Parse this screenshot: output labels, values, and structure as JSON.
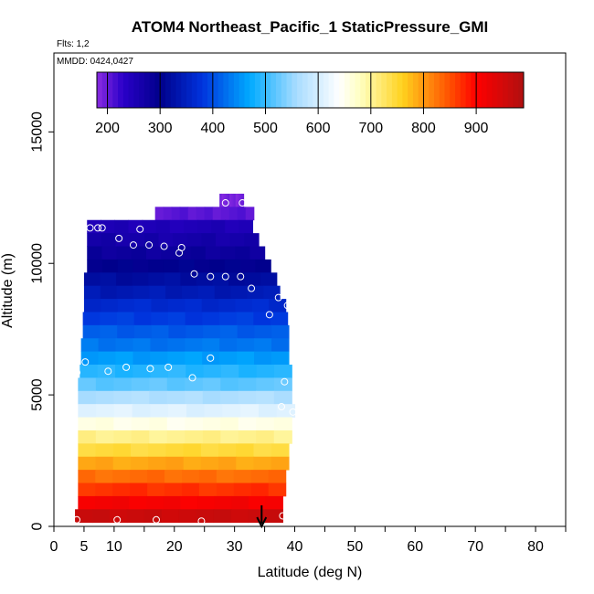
{
  "chart_data": {
    "type": "heatmap",
    "title": "ATOM4 Northeast_Pacific_1 StaticPressure_GMI",
    "flights_text": "Flts: 1,2",
    "mmdd_text": "MMDD: 0424,0427",
    "xlabel": "Latitude (deg N)",
    "ylabel": "Altitude (m)",
    "xlim": [
      0,
      85
    ],
    "ylim": [
      0,
      18000
    ],
    "x_ticks": [
      0,
      10,
      20,
      30,
      40,
      50,
      60,
      70,
      80
    ],
    "x_tick_labels": [
      "0",
      "5",
      "10",
      "20",
      "30",
      "40",
      "50",
      "60",
      "70",
      "80"
    ],
    "x_tick_label_values": [
      0,
      5,
      10,
      20,
      30,
      40,
      50,
      60,
      70,
      80
    ],
    "y_ticks": [
      0,
      5000,
      10000,
      15000
    ],
    "y_tick_labels": [
      "0",
      "5000",
      "10000",
      "15000"
    ],
    "colorbar": {
      "min": 180,
      "max": 990,
      "ticks": [
        200,
        300,
        400,
        500,
        600,
        700,
        800,
        900
      ],
      "tick_labels": [
        "200",
        "300",
        "400",
        "500",
        "600",
        "700",
        "800",
        "900"
      ]
    },
    "colormap": [
      {
        "v": 180,
        "c": "#8b2be2"
      },
      {
        "v": 230,
        "c": "#2a00c8"
      },
      {
        "v": 300,
        "c": "#00008b"
      },
      {
        "v": 380,
        "c": "#0033dd"
      },
      {
        "v": 470,
        "c": "#00aaff"
      },
      {
        "v": 560,
        "c": "#aaddff"
      },
      {
        "v": 640,
        "c": "#ffffff"
      },
      {
        "v": 680,
        "c": "#ffffc0"
      },
      {
        "v": 760,
        "c": "#ffd21e"
      },
      {
        "v": 850,
        "c": "#ff5000"
      },
      {
        "v": 900,
        "c": "#ff0000"
      },
      {
        "v": 990,
        "c": "#b01010"
      }
    ],
    "layers": [
      {
        "alt": 12400,
        "x0": 27.5,
        "x1": 31.5,
        "p": 190
      },
      {
        "alt": 11900,
        "x0": 16.8,
        "x1": 33.2,
        "p": 205
      },
      {
        "alt": 11400,
        "x0": 5.5,
        "x1": 33.0,
        "p": 250
      },
      {
        "alt": 10900,
        "x0": 5.5,
        "x1": 34.0,
        "p": 265
      },
      {
        "alt": 10400,
        "x0": 5.5,
        "x1": 35.0,
        "p": 280
      },
      {
        "alt": 9900,
        "x0": 5.5,
        "x1": 36.0,
        "p": 300
      },
      {
        "alt": 9400,
        "x0": 5.0,
        "x1": 37.0,
        "p": 320
      },
      {
        "alt": 8900,
        "x0": 5.0,
        "x1": 37.5,
        "p": 340
      },
      {
        "alt": 8400,
        "x0": 5.0,
        "x1": 38.5,
        "p": 365
      },
      {
        "alt": 7900,
        "x0": 4.8,
        "x1": 38.8,
        "p": 385
      },
      {
        "alt": 7400,
        "x0": 4.8,
        "x1": 39.0,
        "p": 410
      },
      {
        "alt": 6900,
        "x0": 4.5,
        "x1": 39.0,
        "p": 430
      },
      {
        "alt": 6400,
        "x0": 4.5,
        "x1": 39.0,
        "p": 460
      },
      {
        "alt": 5900,
        "x0": 4.3,
        "x1": 39.5,
        "p": 490
      },
      {
        "alt": 5400,
        "x0": 4.0,
        "x1": 39.5,
        "p": 520
      },
      {
        "alt": 4900,
        "x0": 4.0,
        "x1": 39.5,
        "p": 565
      },
      {
        "alt": 4400,
        "x0": 4.0,
        "x1": 40.0,
        "p": 610
      },
      {
        "alt": 3900,
        "x0": 4.0,
        "x1": 39.5,
        "p": 655
      },
      {
        "alt": 3400,
        "x0": 4.0,
        "x1": 39.5,
        "p": 705
      },
      {
        "alt": 2900,
        "x0": 4.0,
        "x1": 39.0,
        "p": 745
      },
      {
        "alt": 2400,
        "x0": 4.0,
        "x1": 39.0,
        "p": 790
      },
      {
        "alt": 1900,
        "x0": 4.0,
        "x1": 38.5,
        "p": 830
      },
      {
        "alt": 1400,
        "x0": 4.0,
        "x1": 38.5,
        "p": 870
      },
      {
        "alt": 900,
        "x0": 4.0,
        "x1": 38.0,
        "p": 910
      },
      {
        "alt": 400,
        "x0": 3.5,
        "x1": 38.0,
        "p": 960
      }
    ],
    "points": [
      {
        "lat": 28.5,
        "alt": 12300
      },
      {
        "lat": 31.3,
        "alt": 12300
      },
      {
        "lat": 6.0,
        "alt": 11350
      },
      {
        "lat": 7.3,
        "alt": 11350
      },
      {
        "lat": 8.0,
        "alt": 11350
      },
      {
        "lat": 14.3,
        "alt": 11300
      },
      {
        "lat": 10.8,
        "alt": 10950
      },
      {
        "lat": 13.2,
        "alt": 10700
      },
      {
        "lat": 15.8,
        "alt": 10700
      },
      {
        "lat": 18.3,
        "alt": 10650
      },
      {
        "lat": 21.2,
        "alt": 10600
      },
      {
        "lat": 20.8,
        "alt": 10400
      },
      {
        "lat": 23.3,
        "alt": 9600
      },
      {
        "lat": 26.0,
        "alt": 9500
      },
      {
        "lat": 28.5,
        "alt": 9500
      },
      {
        "lat": 31.0,
        "alt": 9500
      },
      {
        "lat": 32.8,
        "alt": 9050
      },
      {
        "lat": 37.3,
        "alt": 8700
      },
      {
        "lat": 38.8,
        "alt": 8400
      },
      {
        "lat": 35.8,
        "alt": 8050
      },
      {
        "lat": 26.0,
        "alt": 6400
      },
      {
        "lat": 5.2,
        "alt": 6250
      },
      {
        "lat": 3.8,
        "alt": 5850
      },
      {
        "lat": 9.0,
        "alt": 5900
      },
      {
        "lat": 12.0,
        "alt": 6050
      },
      {
        "lat": 16.0,
        "alt": 6000
      },
      {
        "lat": 19.0,
        "alt": 6050
      },
      {
        "lat": 23.0,
        "alt": 5650
      },
      {
        "lat": 38.3,
        "alt": 5500
      },
      {
        "lat": 37.8,
        "alt": 4550
      },
      {
        "lat": 39.7,
        "alt": 4350
      },
      {
        "lat": 3.8,
        "alt": 250
      },
      {
        "lat": 10.5,
        "alt": 250
      },
      {
        "lat": 17.0,
        "alt": 250
      },
      {
        "lat": 24.5,
        "alt": 200
      },
      {
        "lat": 38.0,
        "alt": 400
      }
    ],
    "arrow": {
      "lat": 34.5,
      "alt_top": 800,
      "alt_bottom": 0
    }
  }
}
